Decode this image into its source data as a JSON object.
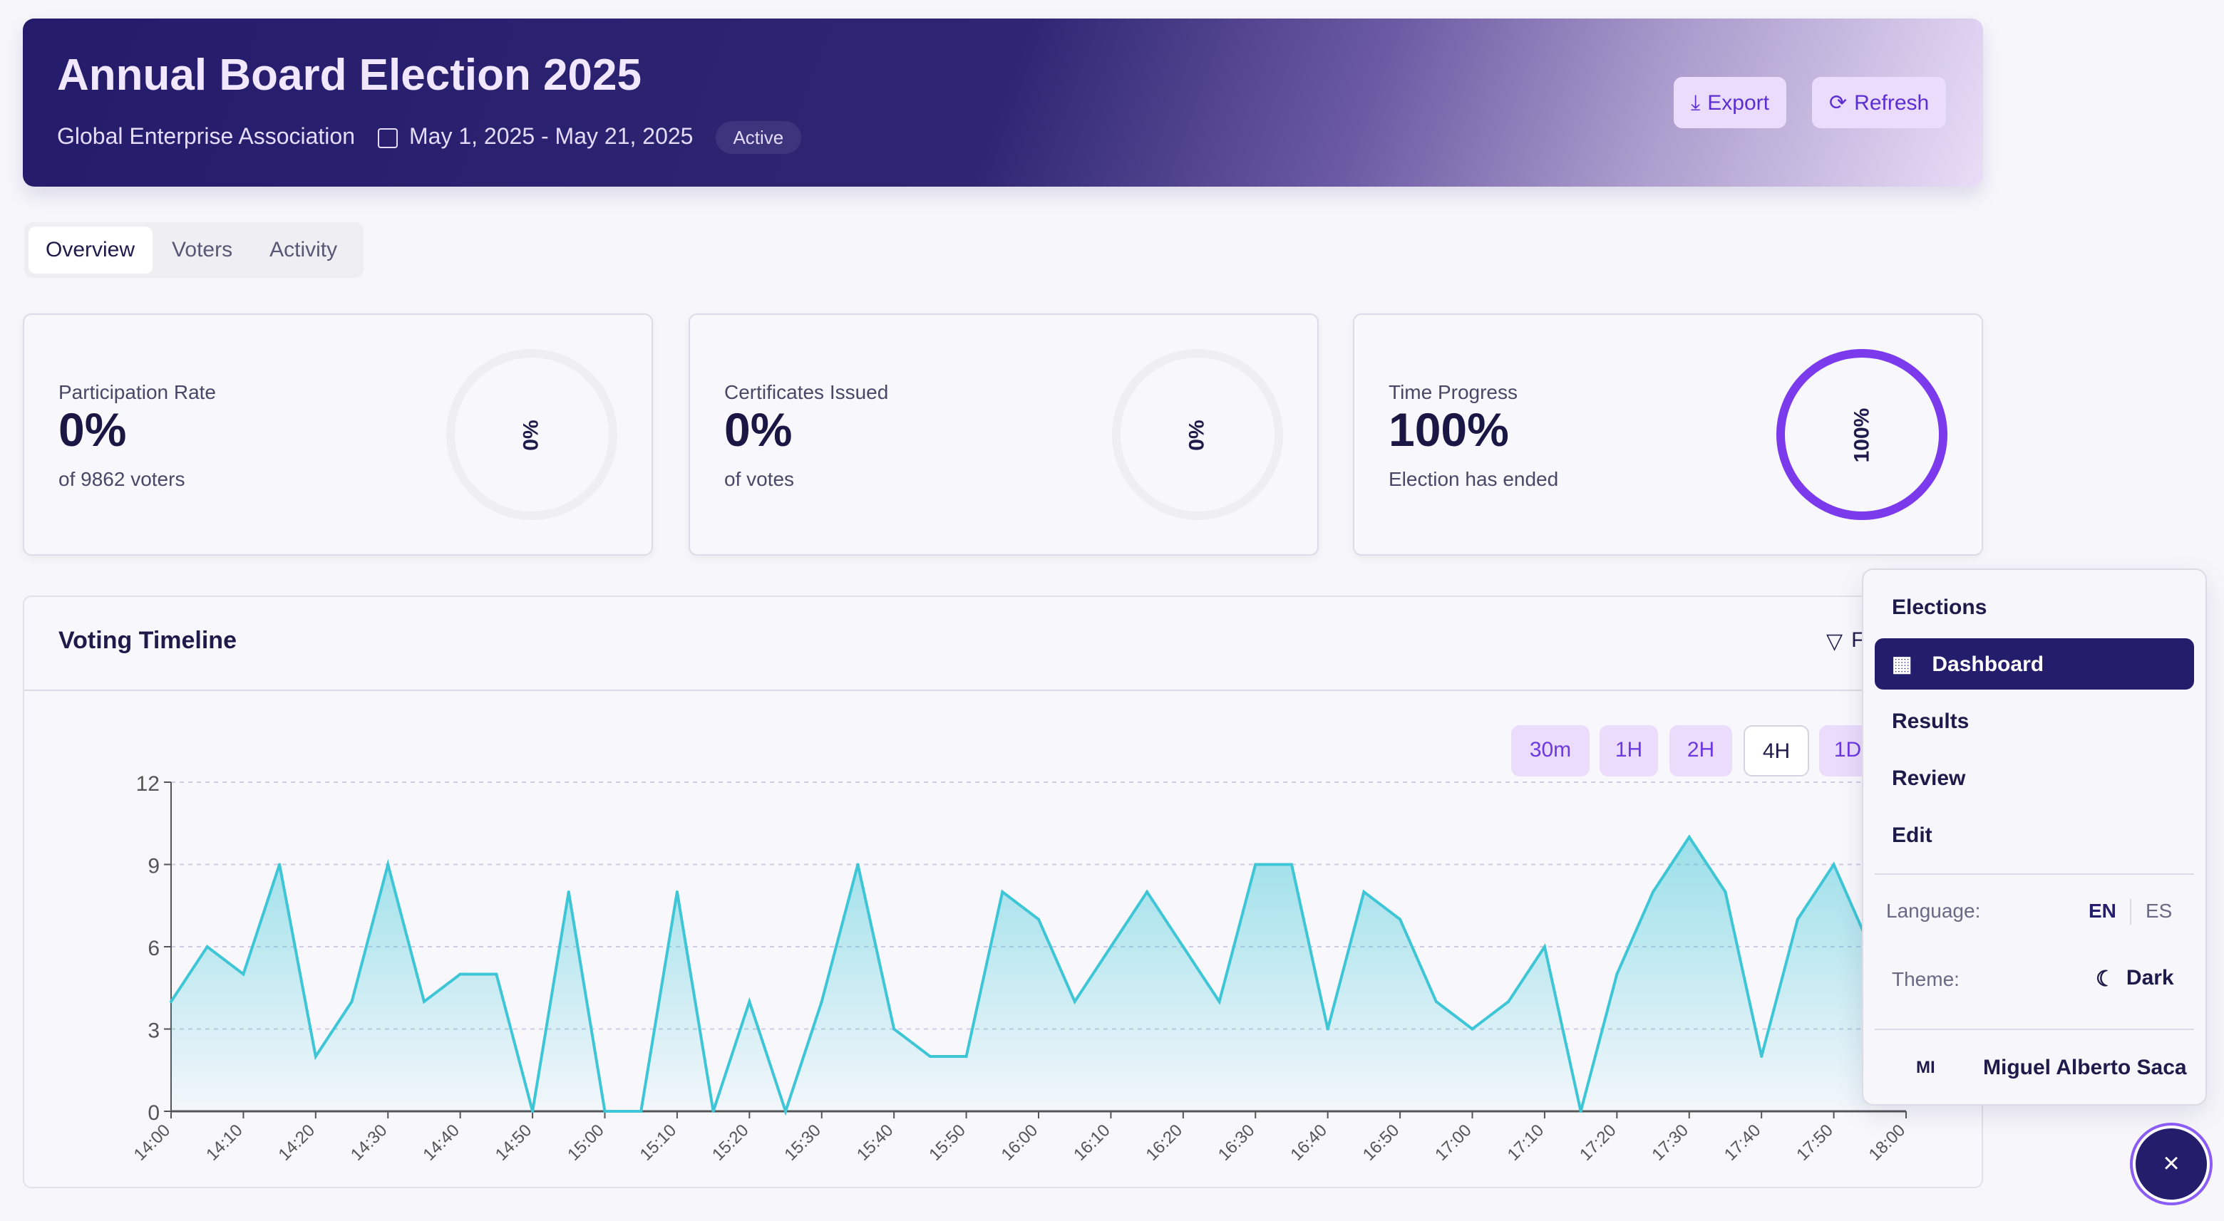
{
  "header": {
    "title": "Annual Board Election 2025",
    "organization": "Global Enterprise Association",
    "date_range": "May 1, 2025 - May 21, 2025",
    "status": "Active",
    "export_label": "Export",
    "refresh_label": "Refresh"
  },
  "tabs": [
    {
      "label": "Overview"
    },
    {
      "label": "Voters"
    },
    {
      "label": "Activity"
    }
  ],
  "cards": [
    {
      "label": "Participation Rate",
      "value": "0%",
      "caption": "of 9862 voters",
      "ring": "0%",
      "progress": 0
    },
    {
      "label": "Certificates Issued",
      "value": "0%",
      "caption": "of votes",
      "ring": "0%",
      "progress": 0
    },
    {
      "label": "Time Progress",
      "value": "100%",
      "caption": "Election has ended",
      "ring": "100%",
      "progress": 100
    }
  ],
  "timeline": {
    "title": "Voting Timeline",
    "filter_label": "F",
    "ranges": [
      "30m",
      "1H",
      "2H",
      "4H",
      "1D"
    ],
    "selected_range": "4H"
  },
  "chart_data": {
    "type": "area",
    "title": "Voting Timeline",
    "ylim": [
      0,
      12
    ],
    "yticks": [
      "0",
      "3",
      "6",
      "9",
      "12"
    ],
    "xticks": [
      "14:00",
      "14:10",
      "14:20",
      "14:30",
      "14:40",
      "14:50",
      "15:00",
      "15:10",
      "15:20",
      "15:30",
      "15:40",
      "15:50",
      "16:00",
      "16:10",
      "16:20",
      "16:30",
      "16:40",
      "16:50",
      "17:00",
      "17:10",
      "17:20",
      "17:30",
      "17:40",
      "17:50",
      "18:00"
    ],
    "interval_minutes": 5,
    "start": "14:00",
    "values": [
      4,
      6,
      5,
      9,
      2,
      4,
      9,
      4,
      5,
      5,
      0,
      8,
      0,
      0,
      8,
      0,
      4,
      0,
      4,
      9,
      3,
      2,
      2,
      8,
      7,
      4,
      6,
      8,
      6,
      4,
      9,
      9,
      3,
      8,
      7,
      4,
      3,
      4,
      6,
      0,
      5,
      8,
      10,
      8,
      2,
      7,
      9,
      6
    ],
    "color": "#3ec6d6"
  },
  "menu": {
    "section": "Elections",
    "items": [
      "Dashboard",
      "Results",
      "Review",
      "Edit"
    ],
    "active": "Dashboard",
    "language_label": "Language:",
    "lang_en": "EN",
    "lang_es": "ES",
    "theme_label": "Theme:",
    "theme_value": "Dark",
    "user_initials": "MI",
    "user_name": "Miguel Alberto Saca"
  },
  "fab": {
    "close": "×"
  }
}
